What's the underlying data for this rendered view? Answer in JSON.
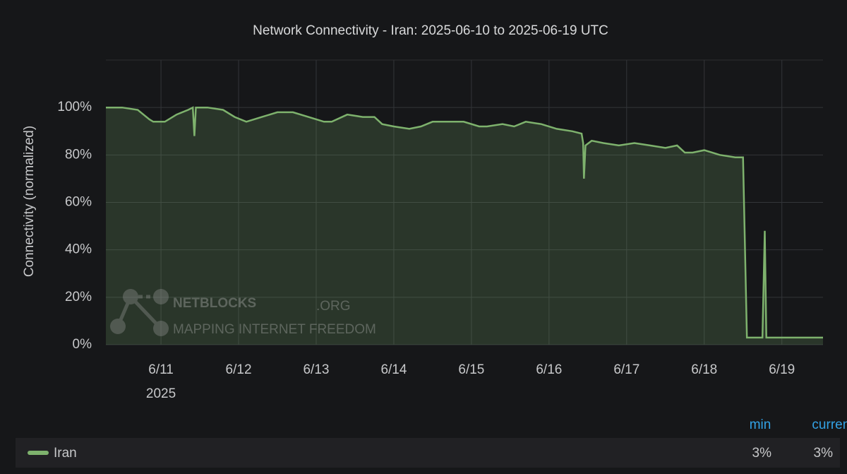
{
  "chart_data": {
    "type": "line",
    "title": "Network Connectivity - Iran: 2025-06-10 to 2025-06-19 UTC",
    "y_label": "Connectivity (normalized)",
    "x_year_label": "2025",
    "x": [
      10.29,
      10.5,
      10.7,
      10.85,
      10.9,
      11.05,
      11.2,
      11.35,
      11.41,
      11.43,
      11.45,
      11.6,
      11.8,
      11.95,
      12.1,
      12.3,
      12.5,
      12.7,
      12.9,
      13.1,
      13.2,
      13.4,
      13.6,
      13.75,
      13.85,
      14.0,
      14.2,
      14.35,
      14.5,
      14.7,
      14.9,
      15.1,
      15.2,
      15.4,
      15.55,
      15.7,
      15.9,
      16.1,
      16.3,
      16.42,
      16.44,
      16.45,
      16.47,
      16.55,
      16.7,
      16.9,
      17.1,
      17.3,
      17.5,
      17.65,
      17.75,
      17.85,
      18.0,
      18.2,
      18.4,
      18.5,
      18.55,
      18.6,
      18.75,
      18.78,
      18.8,
      19.0,
      19.2,
      19.53
    ],
    "series": [
      {
        "name": "Iran",
        "color": "#7eb26d",
        "values": [
          100,
          100,
          99,
          95,
          94,
          94,
          97,
          99,
          100,
          88,
          100,
          100,
          99,
          96,
          94,
          96,
          98,
          98,
          96,
          94,
          94,
          97,
          96,
          96,
          93,
          92,
          91,
          92,
          94,
          94,
          94,
          92,
          92,
          93,
          92,
          94,
          93,
          91,
          90,
          89,
          85,
          70,
          84,
          86,
          85,
          84,
          85,
          84,
          83,
          84,
          81,
          81,
          82,
          80,
          79,
          79,
          3,
          3,
          3,
          48,
          3,
          3,
          3,
          3
        ]
      }
    ],
    "xlim": [
      10.29,
      19.53
    ],
    "xticks": [
      {
        "value": 11,
        "label": "6/11"
      },
      {
        "value": 12,
        "label": "6/12"
      },
      {
        "value": 13,
        "label": "6/13"
      },
      {
        "value": 14,
        "label": "6/14"
      },
      {
        "value": 15,
        "label": "6/15"
      },
      {
        "value": 16,
        "label": "6/16"
      },
      {
        "value": 17,
        "label": "6/17"
      },
      {
        "value": 18,
        "label": "6/18"
      },
      {
        "value": 19,
        "label": "6/19"
      }
    ],
    "ylim": [
      0,
      120
    ],
    "yticks": [
      {
        "value": 0,
        "label": "0%"
      },
      {
        "value": 20,
        "label": "20%"
      },
      {
        "value": 40,
        "label": "40%"
      },
      {
        "value": 60,
        "label": "60%"
      },
      {
        "value": 80,
        "label": "80%"
      },
      {
        "value": 100,
        "label": "100%"
      }
    ],
    "grid": true,
    "legend_stats": {
      "headers": [
        "min",
        "current"
      ],
      "values": [
        3,
        3
      ],
      "value_labels": [
        "3%",
        "3%"
      ]
    },
    "watermark": {
      "brand": "NETBLOCKS",
      "suffix": ".ORG",
      "tagline": "MAPPING INTERNET FREEDOM"
    }
  }
}
